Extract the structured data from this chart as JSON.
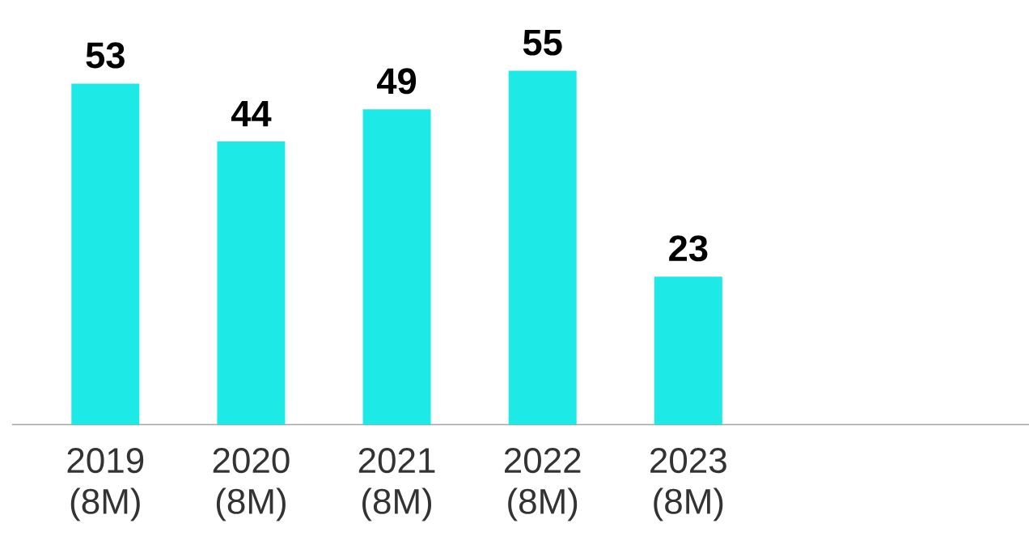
{
  "chart_data": {
    "type": "bar",
    "categories": [
      "2019 (8M)",
      "2020 (8M)",
      "2021 (8M)",
      "2022 (8M)",
      "2023 (8M)"
    ],
    "values": [
      53,
      44,
      49,
      55,
      23
    ],
    "color": "#1de9e6",
    "data_labels": true
  }
}
